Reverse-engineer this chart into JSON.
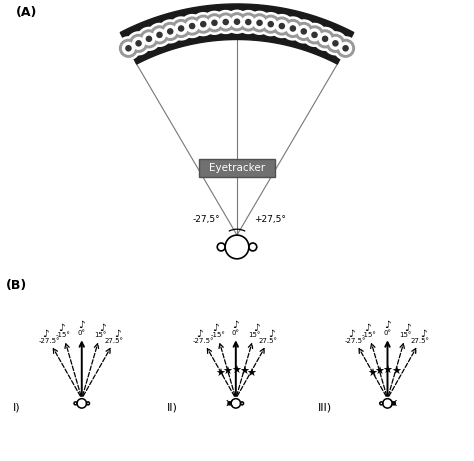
{
  "title_A": "(A)",
  "title_B": "(B)",
  "eyetracker_label": "Eyetracker",
  "angles_deg": [
    -27.5,
    -15,
    0,
    15,
    27.5
  ],
  "angle_labels": [
    "-27.5°",
    "-15°",
    "0°",
    "15°",
    "27.5°"
  ],
  "left_angle_label": "-27,5°",
  "right_angle_label": "+27,5°",
  "scenario_labels": [
    "I)",
    "II)",
    "III)"
  ],
  "bg_color": "#ffffff",
  "num_speakers": 21,
  "scenario_solid": [
    [
      2
    ],
    [
      2
    ],
    [
      2
    ]
  ],
  "scenario_stars": [
    [],
    [
      0,
      1,
      2,
      3,
      4
    ],
    [
      0,
      1,
      2,
      3
    ]
  ],
  "scenario_x_left": [
    false,
    true,
    false
  ],
  "scenario_x_right": [
    false,
    false,
    true
  ]
}
